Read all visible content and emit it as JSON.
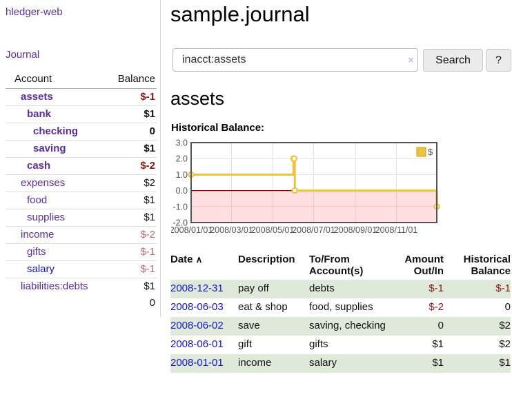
{
  "app": {
    "brand": "hledger-web"
  },
  "sidebar": {
    "nav_journal": "Journal",
    "accounts": {
      "header": {
        "account": "Account",
        "balance": "Balance"
      },
      "rows": [
        {
          "name": "assets",
          "balance": "$-1",
          "level": 1,
          "bold": true,
          "neg": "strong"
        },
        {
          "name": "bank",
          "balance": "$1",
          "level": 2,
          "bold": true,
          "neg": "none"
        },
        {
          "name": "checking",
          "balance": "0",
          "level": 3,
          "bold": true,
          "neg": "none"
        },
        {
          "name": "saving",
          "balance": "$1",
          "level": 3,
          "bold": true,
          "neg": "none"
        },
        {
          "name": "cash",
          "balance": "$-2",
          "level": 2,
          "bold": true,
          "neg": "strong"
        },
        {
          "name": "expenses",
          "balance": "$2",
          "level": 1,
          "bold": false,
          "neg": "none"
        },
        {
          "name": "food",
          "balance": "$1",
          "level": 2,
          "bold": false,
          "neg": "none"
        },
        {
          "name": "supplies",
          "balance": "$1",
          "level": 2,
          "bold": false,
          "neg": "none"
        },
        {
          "name": "income",
          "balance": "$-2",
          "level": 1,
          "bold": false,
          "neg": "soft"
        },
        {
          "name": "gifts",
          "balance": "$-1",
          "level": 2,
          "bold": false,
          "neg": "soft"
        },
        {
          "name": "salary",
          "balance": "$-1",
          "level": 2,
          "bold": false,
          "neg": "soft",
          "link_style": "unvisited"
        },
        {
          "name": "liabilities:debts",
          "balance": "$1",
          "level": 1,
          "bold": false,
          "neg": "none"
        }
      ],
      "total": "0"
    }
  },
  "main": {
    "title": "sample.journal",
    "search": {
      "value": "inacct:assets",
      "clear_icon": "×",
      "button_label": "Search",
      "help_label": "?"
    },
    "account_heading": "assets",
    "chart_heading": "Historical Balance:"
  },
  "chart_data": {
    "type": "line",
    "style": "step",
    "title": "Historical Balance",
    "x_min": "2008-01-01",
    "x_max": "2008-12-31",
    "x_ticks": [
      {
        "date": "2008-01-01",
        "label": "2008/01/01"
      },
      {
        "date": "2008-03-01",
        "label": "2008/03/01"
      },
      {
        "date": "2008-05-01",
        "label": "2008/05/01"
      },
      {
        "date": "2008-07-01",
        "label": "2008/07/01"
      },
      {
        "date": "2008-09-01",
        "label": "2008/09/01"
      },
      {
        "date": "2008-11-01",
        "label": "2008/11/01"
      }
    ],
    "y_ticks": [
      {
        "v": 3,
        "label": "3.0"
      },
      {
        "v": 2,
        "label": "2.0"
      },
      {
        "v": 1,
        "label": "1.0"
      },
      {
        "v": 0,
        "label": "0.0"
      },
      {
        "v": -1,
        "label": "-1.0"
      },
      {
        "v": -2,
        "label": "-2.0"
      }
    ],
    "ylim": [
      -2,
      3
    ],
    "grid": true,
    "negative_region_shaded": true,
    "legend": {
      "label": "$",
      "position": "top-right"
    },
    "series": [
      {
        "name": "$",
        "points": [
          [
            "2008-01-01",
            1
          ],
          [
            "2008-06-01",
            2
          ],
          [
            "2008-06-02",
            2
          ],
          [
            "2008-06-03",
            0
          ],
          [
            "2008-12-31",
            -1
          ]
        ]
      }
    ]
  },
  "register": {
    "headers": {
      "date": "Date",
      "sort_icon": "∧",
      "description": "Description",
      "accounts": "To/From Account(s)",
      "amount": "Amount Out/In",
      "balance": "Historical Balance"
    },
    "rows": [
      {
        "date": "2008-12-31",
        "description": "pay off",
        "accounts": "debts",
        "amount": "$-1",
        "amount_neg": true,
        "balance": "$-1",
        "balance_neg": true,
        "shaded": true
      },
      {
        "date": "2008-06-03",
        "description": "eat & shop",
        "accounts": "food, supplies",
        "amount": "$-2",
        "amount_neg": true,
        "balance": "0",
        "balance_neg": false,
        "shaded": false
      },
      {
        "date": "2008-06-02",
        "description": "save",
        "accounts": "saving, checking",
        "amount": "0",
        "amount_neg": false,
        "balance": "$2",
        "balance_neg": false,
        "shaded": true
      },
      {
        "date": "2008-06-01",
        "description": "gift",
        "accounts": "gifts",
        "amount": "$1",
        "amount_neg": false,
        "balance": "$2",
        "balance_neg": false,
        "shaded": false
      },
      {
        "date": "2008-01-01",
        "description": "income",
        "accounts": "salary",
        "amount": "$1",
        "amount_neg": false,
        "balance": "$1",
        "balance_neg": false,
        "shaded": true
      }
    ]
  },
  "colors": {
    "link_purple": "#5a2d9e",
    "link_blue": "#1414cc",
    "negative_strong": "#8b1515",
    "negative_soft": "#c06868",
    "row_green": "#dfe9da",
    "chart_line": "#edc240",
    "chart_negative_fill": "rgba(255,110,110,0.22)",
    "zero_line": "#8b0000",
    "chart_frame": "#545454"
  }
}
